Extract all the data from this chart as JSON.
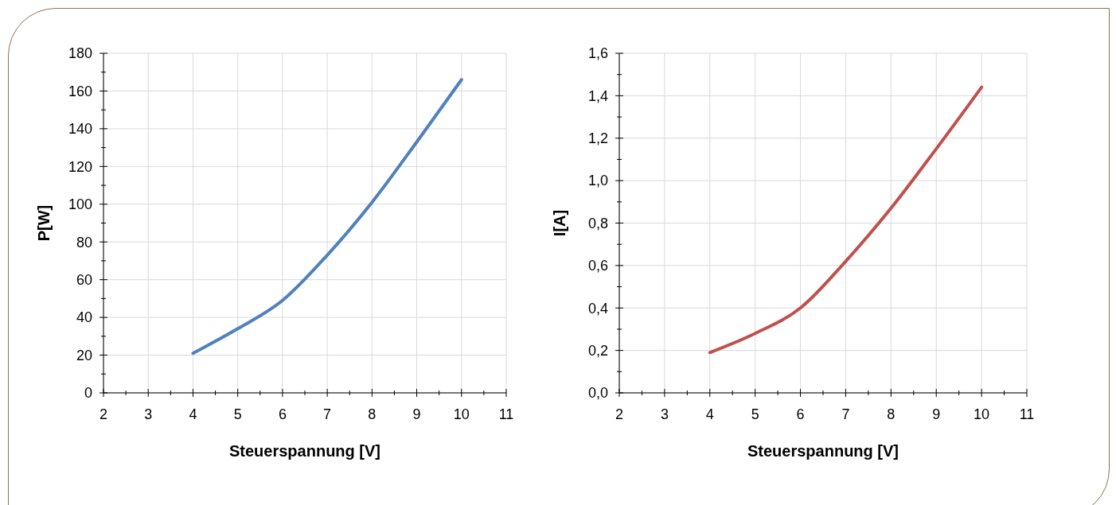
{
  "chart_data": [
    {
      "type": "line",
      "xlabel": "Steuerspannung [V]",
      "ylabel": "P[W]",
      "xlim": [
        2,
        11
      ],
      "xticks": [
        2,
        {
          "value": 2.5,
          "label": null
        },
        3,
        {
          "value": 3.5,
          "label": null
        },
        4,
        {
          "value": 4.5,
          "label": null
        },
        5,
        {
          "value": 5.5,
          "label": null
        },
        6,
        {
          "value": 6.5,
          "label": null
        },
        7,
        {
          "value": 7.5,
          "label": null
        },
        8,
        {
          "value": 8.5,
          "label": null
        },
        9,
        {
          "value": 9.5,
          "label": null
        },
        10,
        {
          "value": 10.5,
          "label": null
        },
        11
      ],
      "ylim": [
        0,
        180
      ],
      "yticks": [
        0,
        {
          "value": 10,
          "label": null
        },
        20,
        {
          "value": 30,
          "label": null
        },
        40,
        {
          "value": 50,
          "label": null
        },
        60,
        {
          "value": 70,
          "label": null
        },
        80,
        {
          "value": 90,
          "label": null
        },
        100,
        {
          "value": 110,
          "label": null
        },
        120,
        {
          "value": 130,
          "label": null
        },
        140,
        {
          "value": 150,
          "label": null
        },
        160,
        {
          "value": 170,
          "label": null
        },
        180
      ],
      "grid": true,
      "marker": "none",
      "series": [
        {
          "color": "#4f81bd",
          "x": [
            4,
            5,
            6,
            7,
            8,
            9,
            10
          ],
          "values": [
            21,
            34,
            49,
            73,
            101,
            133,
            166
          ]
        }
      ]
    },
    {
      "type": "line",
      "xlabel": "Steuerspannung [V]",
      "ylabel": "I[A]",
      "xlim": [
        2,
        11
      ],
      "xticks": [
        2,
        {
          "value": 2.5,
          "label": null
        },
        3,
        {
          "value": 3.5,
          "label": null
        },
        4,
        {
          "value": 4.5,
          "label": null
        },
        5,
        {
          "value": 5.5,
          "label": null
        },
        6,
        {
          "value": 6.5,
          "label": null
        },
        7,
        {
          "value": 7.5,
          "label": null
        },
        8,
        {
          "value": 8.5,
          "label": null
        },
        9,
        {
          "value": 9.5,
          "label": null
        },
        10,
        {
          "value": 10.5,
          "label": null
        },
        11
      ],
      "ylim": [
        0,
        1.6
      ],
      "yticks": [
        {
          "value": 0,
          "label": "0,0"
        },
        {
          "value": 0.1,
          "label": null
        },
        {
          "value": 0.2,
          "label": "0,2"
        },
        {
          "value": 0.3,
          "label": null
        },
        {
          "value": 0.4,
          "label": "0,4"
        },
        {
          "value": 0.5,
          "label": null
        },
        {
          "value": 0.6,
          "label": "0,6"
        },
        {
          "value": 0.7,
          "label": null
        },
        {
          "value": 0.8,
          "label": "0,8"
        },
        {
          "value": 0.9,
          "label": null
        },
        {
          "value": 1.0,
          "label": "1,0"
        },
        {
          "value": 1.1,
          "label": null
        },
        {
          "value": 1.2,
          "label": "1,2"
        },
        {
          "value": 1.3,
          "label": null
        },
        {
          "value": 1.4,
          "label": "1,4"
        },
        {
          "value": 1.5,
          "label": null
        },
        {
          "value": 1.6,
          "label": "1,6"
        }
      ],
      "grid": true,
      "marker": "none",
      "series": [
        {
          "color": "#c0504d",
          "x": [
            4,
            5,
            6,
            7,
            8,
            9,
            10
          ],
          "values": [
            0.19,
            0.28,
            0.4,
            0.62,
            0.87,
            1.15,
            1.44
          ]
        }
      ]
    }
  ]
}
